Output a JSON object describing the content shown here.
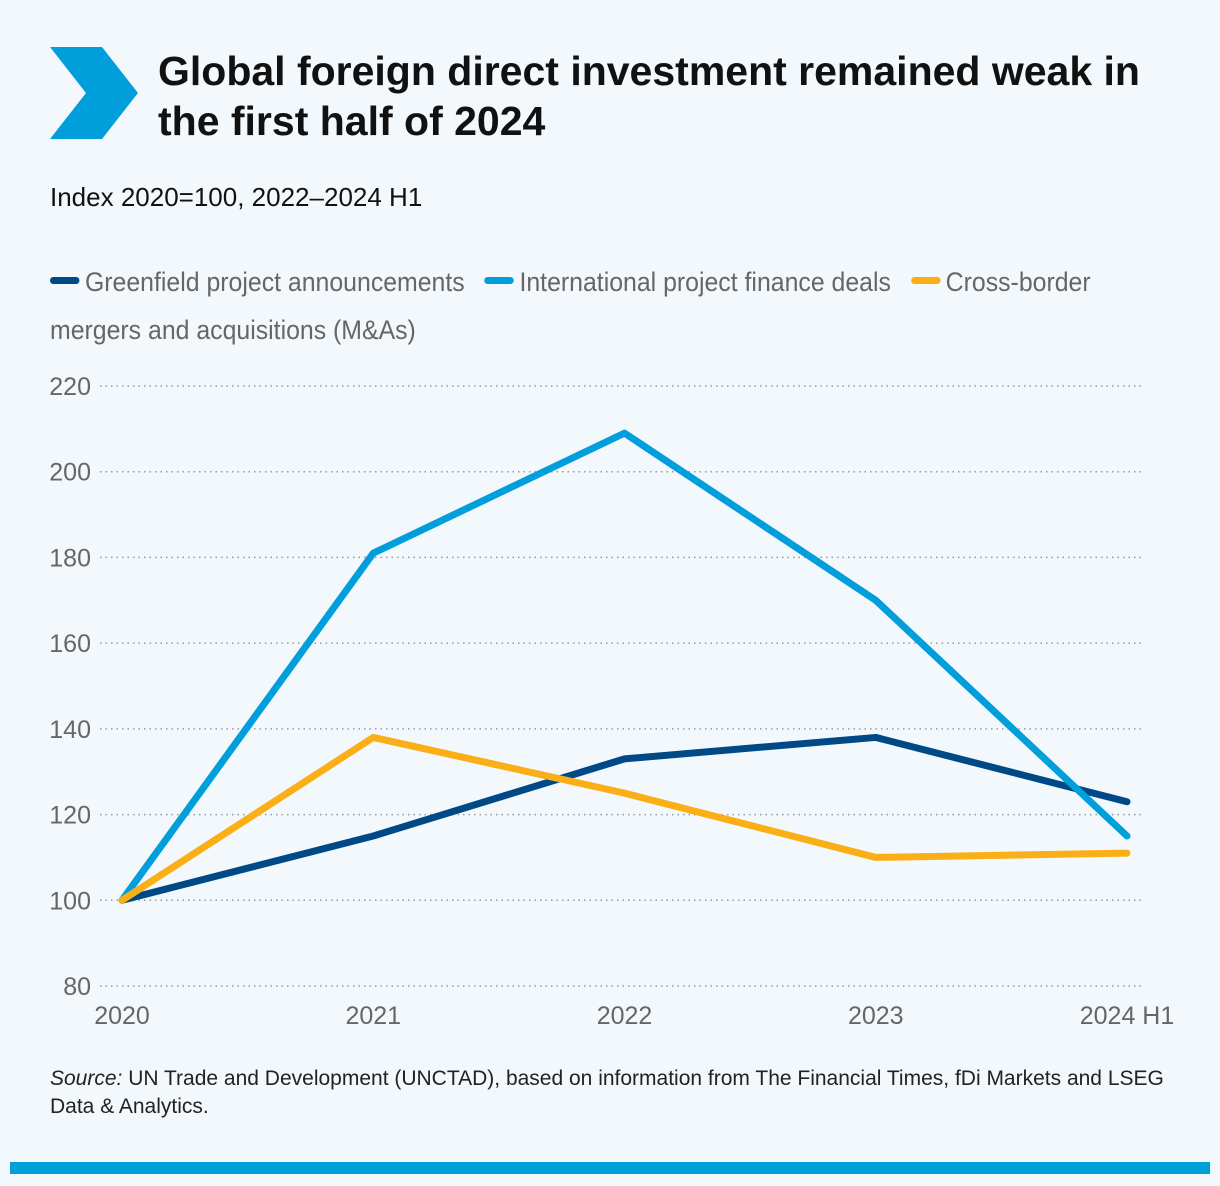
{
  "header": {
    "title": "Global foreign direct investment remained weak in the first half of 2024",
    "subtitle": "Index 2020=100, 2022–2024 H1",
    "chevron_color": "#009edb"
  },
  "source": {
    "label": "Source:",
    "text": "UN Trade and Development (UNCTAD), based on information from The Financial Times, fDi Markets and LSEG Data & Analytics."
  },
  "chart_data": {
    "type": "line",
    "title": "Global foreign direct investment remained weak in the first half of 2024",
    "subtitle": "Index 2020=100, 2022–2024 H1",
    "xlabel": "",
    "ylabel": "",
    "categories": [
      "2020",
      "2021",
      "2022",
      "2023",
      "2024 H1"
    ],
    "ylim": [
      80,
      220
    ],
    "yticks": [
      80,
      100,
      120,
      140,
      160,
      180,
      200,
      220
    ],
    "grid": "horizontal-dotted",
    "legend_position": "top",
    "series": [
      {
        "name": "Greenfield project announcements",
        "color": "#004987",
        "values": [
          100,
          115,
          133,
          138,
          123
        ]
      },
      {
        "name": "International project finance deals",
        "color": "#009edb",
        "values": [
          100,
          181,
          209,
          170,
          115
        ]
      },
      {
        "name": "Cross-border mergers and acquisitions (M&As)",
        "color": "#fbaf17",
        "values": [
          100,
          138,
          125,
          110,
          111
        ]
      }
    ]
  }
}
